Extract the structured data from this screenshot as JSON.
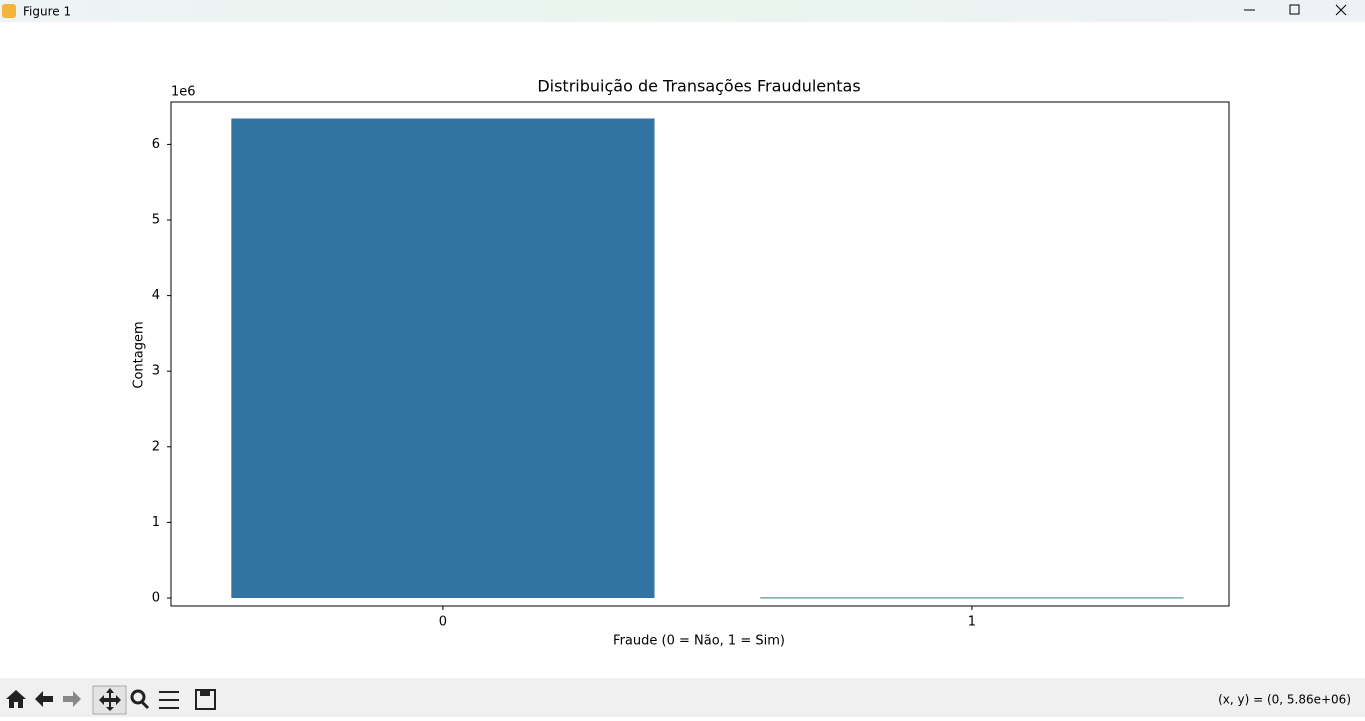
{
  "window": {
    "title": "Figure 1",
    "status": "(x, y) = (0, 5.86e+06)"
  },
  "chart_data": {
    "type": "bar",
    "title": "Distribuição de Transações Fraudulentas",
    "x_label": "Fraude (0 = Não, 1 = Sim)",
    "y_label": "Contagem",
    "y_offset_label": "1e6",
    "categories": [
      "0",
      "1"
    ],
    "values": [
      6343000,
      8000
    ],
    "colors": [
      "#3274a1",
      "#2f7f7a"
    ],
    "ylim": [
      -105800,
      6561000
    ],
    "yticks": [
      0,
      {
        "value": 1000000,
        "label": "1"
      },
      {
        "value": 2000000,
        "label": "2"
      },
      {
        "value": 3000000,
        "label": "3"
      },
      {
        "value": 4000000,
        "label": "4"
      },
      {
        "value": 5000000,
        "label": "5"
      },
      {
        "value": 6000000,
        "label": "6"
      }
    ],
    "grid": false
  }
}
